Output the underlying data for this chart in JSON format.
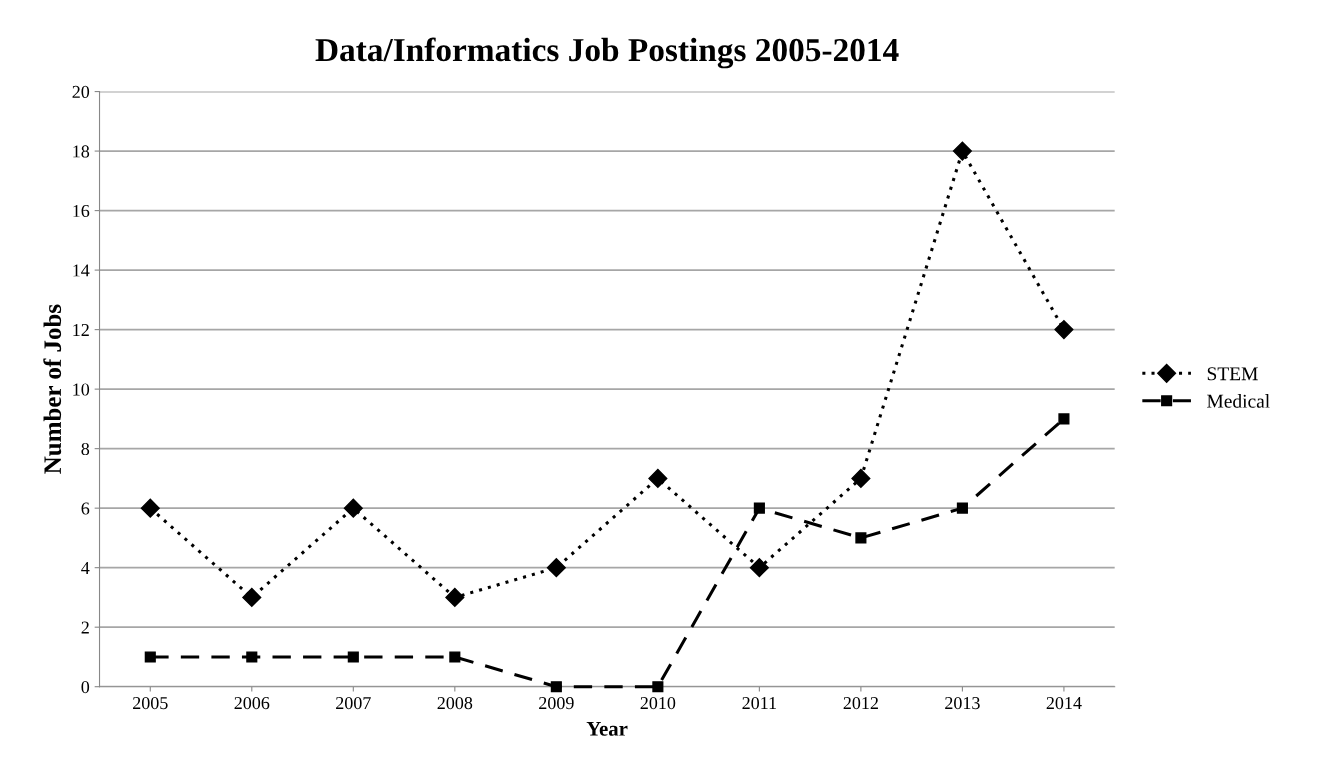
{
  "chart_data": {
    "type": "line",
    "title": "Data/Informatics Job Postings 2005-2014",
    "xlabel": "Year",
    "ylabel": "Number of Jobs",
    "categories": [
      "2005",
      "2006",
      "2007",
      "2008",
      "2009",
      "2010",
      "2011",
      "2012",
      "2013",
      "2014"
    ],
    "series": [
      {
        "name": "STEM",
        "color": "#000000",
        "marker": "diamond",
        "line_style": "dotted",
        "values": [
          6,
          3,
          6,
          3,
          4,
          7,
          4,
          7,
          18,
          12
        ]
      },
      {
        "name": "Medical",
        "color": "#000000",
        "marker": "square",
        "line_style": "dashed",
        "values": [
          1,
          1,
          1,
          1,
          0,
          0,
          6,
          5,
          6,
          9
        ]
      }
    ],
    "ylim": [
      0,
      20
    ],
    "yticks": [
      0,
      2,
      4,
      6,
      8,
      10,
      12,
      14,
      16,
      18,
      20
    ],
    "grid": "y",
    "legend": "right"
  }
}
